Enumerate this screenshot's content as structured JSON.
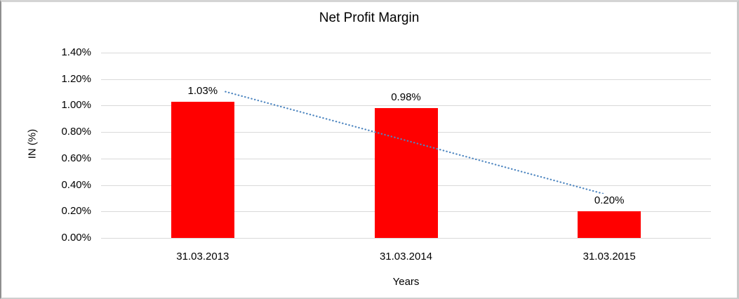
{
  "chart_data": {
    "type": "bar",
    "title": "Net Profit Margin",
    "xlabel": "Years",
    "ylabel": "IN (%)",
    "categories": [
      "31.03.2013",
      "31.03.2014",
      "31.03.2015"
    ],
    "series": [
      {
        "name": "Net Profit Margin",
        "values": [
          1.03,
          0.98,
          0.2
        ],
        "value_labels": [
          "1.03%",
          "0.98%",
          "0.20%"
        ],
        "color": "#FF0000"
      }
    ],
    "trendline": {
      "type": "linear",
      "style": "dotted",
      "color": "#4E86C0",
      "fit_endpoints": [
        1.1517,
        0.3217
      ]
    },
    "ylim": [
      0,
      1.4
    ],
    "ytick_step": 0.2,
    "ytick_labels": [
      "0.00%",
      "0.20%",
      "0.40%",
      "0.60%",
      "0.80%",
      "1.00%",
      "1.20%",
      "1.40%"
    ],
    "grid": true,
    "gridline_color": "#D9D9D9",
    "legend": "none",
    "text_color": "#000000"
  }
}
